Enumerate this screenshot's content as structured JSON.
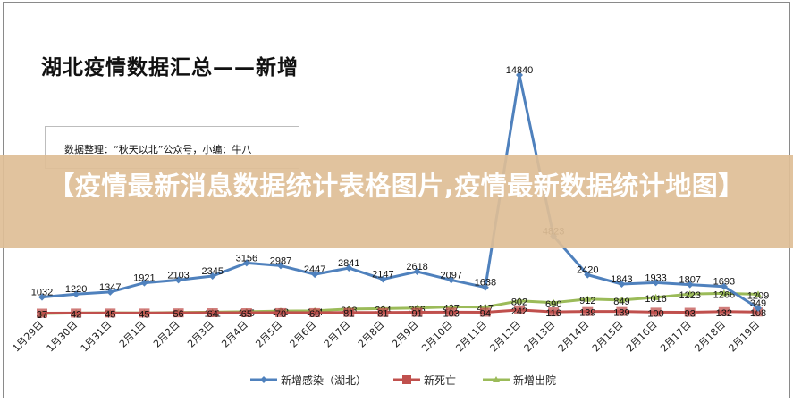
{
  "title": "湖北疫情数据汇总——新增",
  "source_note": "数据整理：“秋天以北”公众号，小编：牛八",
  "banner": {
    "text": "【疫情最新消息数据统计表格图片,疫情最新数据统计地图】"
  },
  "colors": {
    "infected": "#4f81bd",
    "deaths": "#c0504d",
    "discharged": "#9bbb59",
    "banner_bg": "#debe96",
    "frame": "#8a8a8a"
  },
  "legend": [
    {
      "name": "新增感染（湖北）",
      "color": "#4f81bd",
      "marker": "diamond"
    },
    {
      "name": "新死亡",
      "color": "#c0504d",
      "marker": "square"
    },
    {
      "name": "新增出院",
      "color": "#9bbb59",
      "marker": "triangle"
    }
  ],
  "chart_data": {
    "type": "line",
    "title": "湖北疫情数据汇总——新增",
    "xlabel": "",
    "ylabel": "",
    "grid": false,
    "legend_position": "bottom",
    "categories": [
      "1月29日",
      "1月30日",
      "1月31日",
      "2月1日",
      "2月2日",
      "2月3日",
      "2月4日",
      "2月5日",
      "2月6日",
      "2月7日",
      "2月8日",
      "2月9日",
      "2月10日",
      "2月11日",
      "2月12日",
      "2月13日",
      "2月14日",
      "2月15日",
      "2月16日",
      "2月17日",
      "2月18日",
      "2月19日"
    ],
    "series": [
      {
        "name": "新增感染（湖北）",
        "values": [
          1032,
          1220,
          1347,
          1921,
          2103,
          2345,
          3156,
          2987,
          2447,
          2841,
          2147,
          2618,
          2097,
          1638,
          14840,
          4823,
          2420,
          1843,
          1933,
          1807,
          1693,
          349
        ]
      },
      {
        "name": "新死亡",
        "values": [
          37,
          42,
          45,
          45,
          56,
          64,
          65,
          70,
          69,
          81,
          81,
          91,
          103,
          94,
          242,
          116,
          139,
          139,
          100,
          93,
          132,
          108
        ]
      },
      {
        "name": "新增出院",
        "values": [
          10,
          46,
          58,
          49,
          80,
          101,
          125,
          173,
          184,
          298,
          324,
          356,
          427,
          417,
          802,
          690,
          912,
          849,
          1016,
          1223,
          1266,
          1209
        ]
      }
    ],
    "ylim": [
      0,
      15000
    ]
  }
}
